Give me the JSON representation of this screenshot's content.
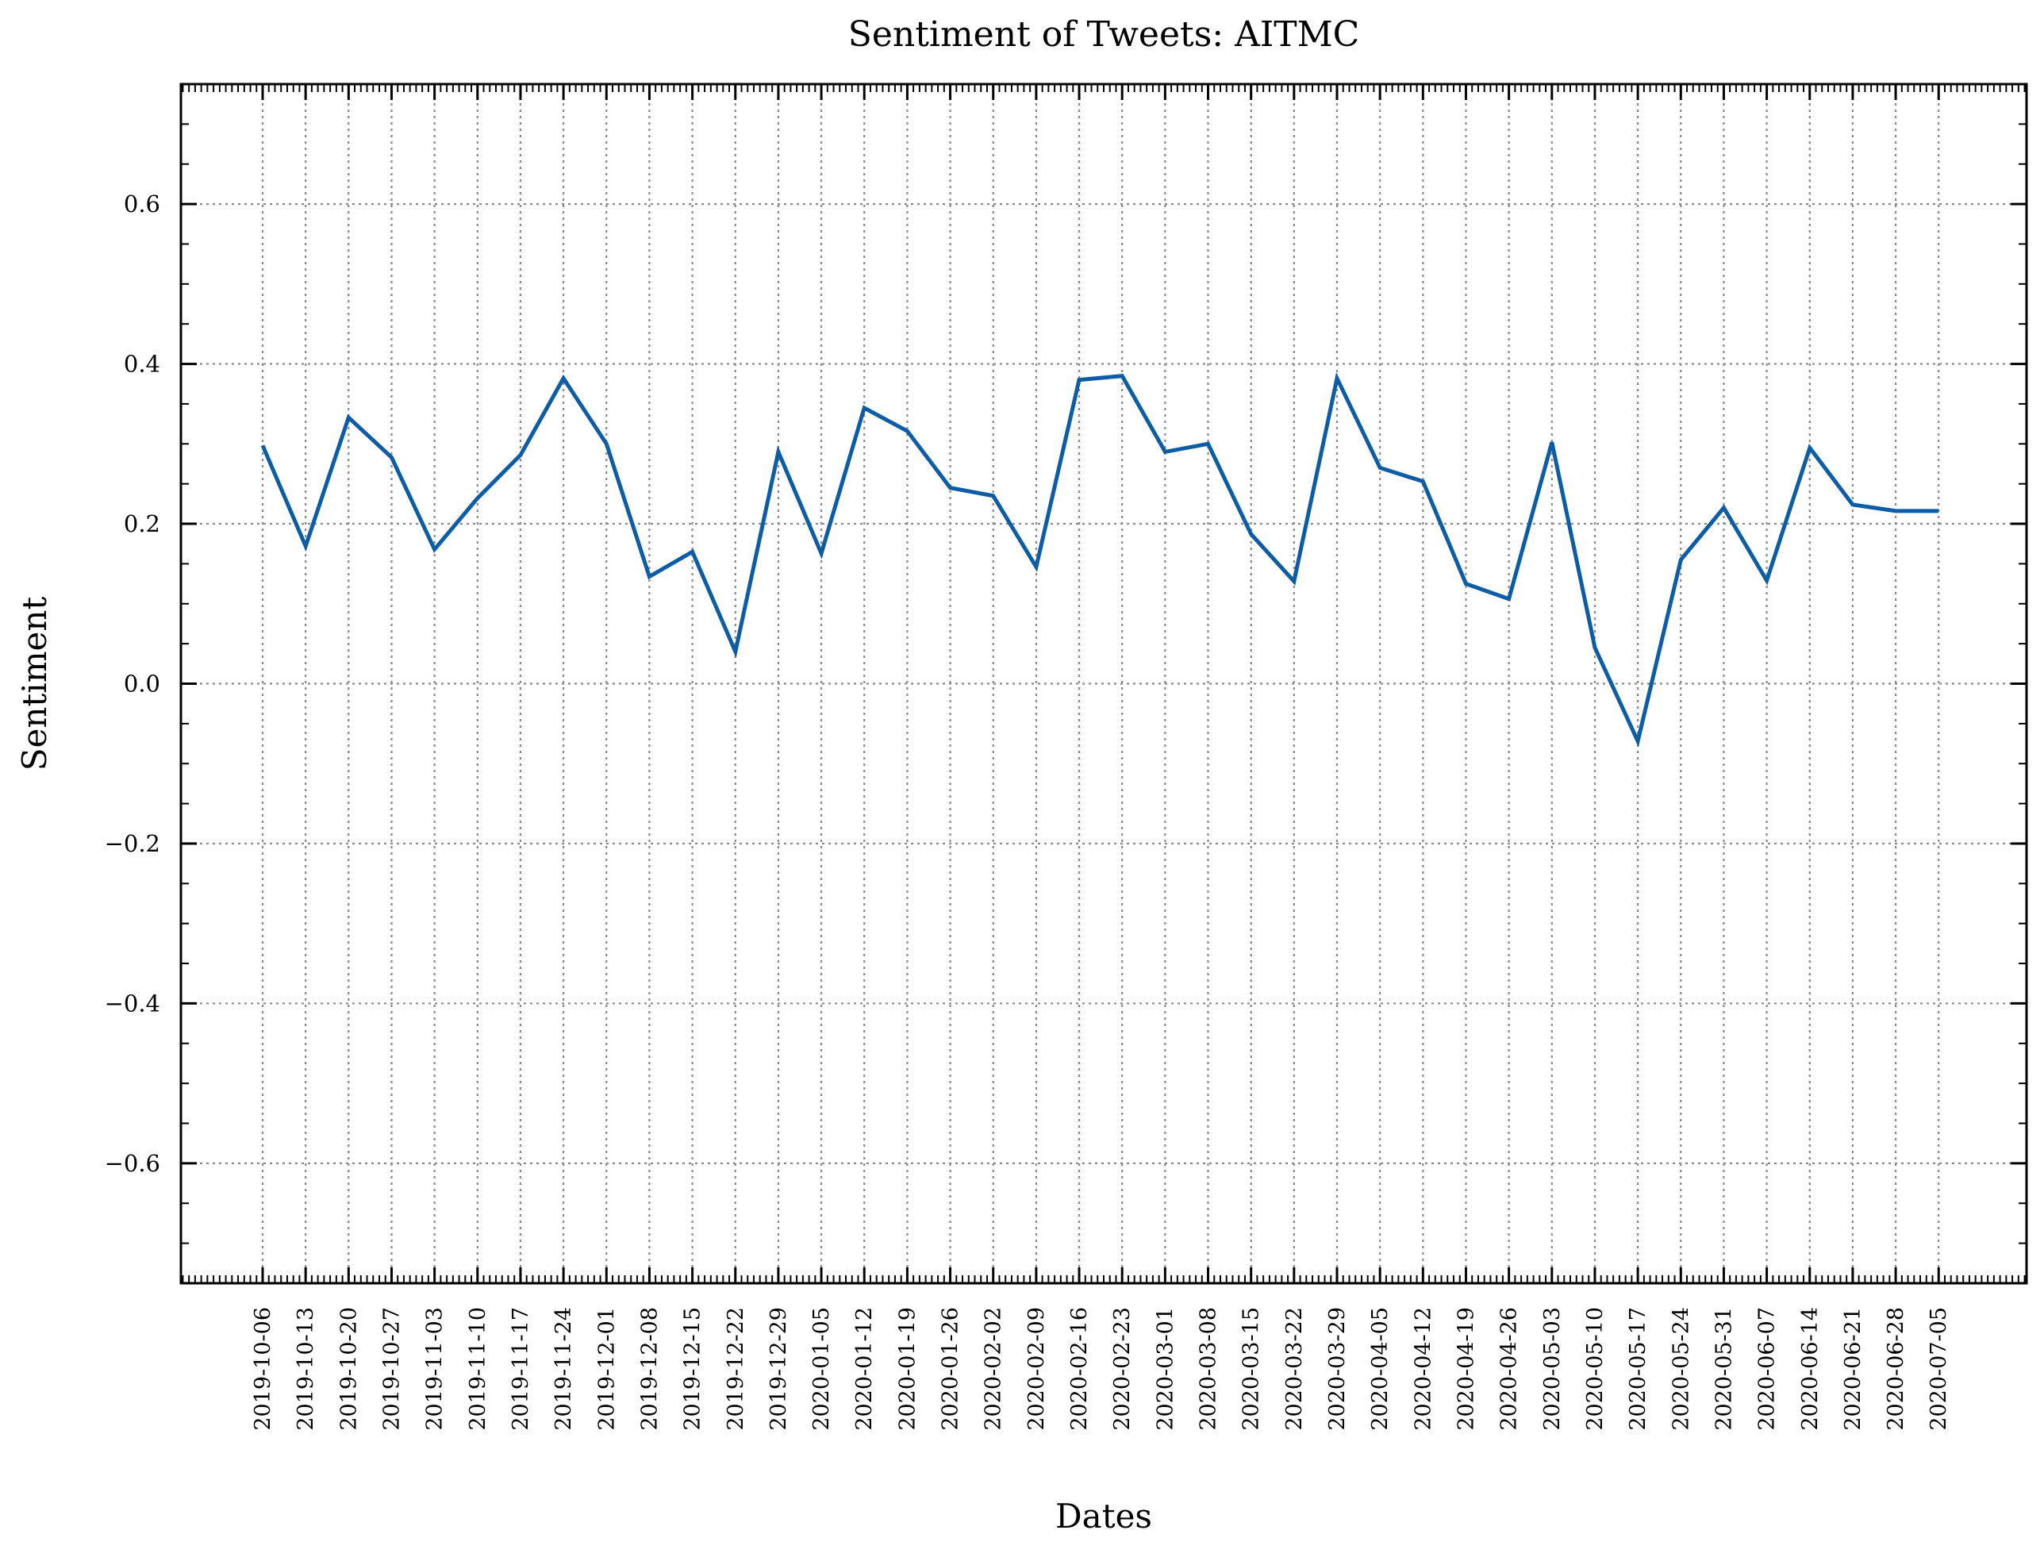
{
  "chart_data": {
    "type": "line",
    "title": "Sentiment of Tweets: AITMC",
    "xlabel": "Dates",
    "ylabel": "Sentiment",
    "ylim": [
      -0.75,
      0.75
    ],
    "yticks": [
      -0.6,
      -0.4,
      -0.2,
      0.0,
      0.2,
      0.4,
      0.6
    ],
    "ytick_labels": [
      "−0.6",
      "−0.4",
      "−0.2",
      "0.0",
      "0.2",
      "0.4",
      "0.6"
    ],
    "grid": true,
    "line_color": "#0c5da5",
    "x": [
      "2019-10-06",
      "2019-10-13",
      "2019-10-20",
      "2019-10-27",
      "2019-11-03",
      "2019-11-10",
      "2019-11-17",
      "2019-11-24",
      "2019-12-01",
      "2019-12-08",
      "2019-12-15",
      "2019-12-22",
      "2019-12-29",
      "2020-01-05",
      "2020-01-12",
      "2020-01-19",
      "2020-01-26",
      "2020-02-02",
      "2020-02-09",
      "2020-02-16",
      "2020-02-23",
      "2020-03-01",
      "2020-03-08",
      "2020-03-15",
      "2020-03-22",
      "2020-03-29",
      "2020-04-05",
      "2020-04-12",
      "2020-04-19",
      "2020-04-26",
      "2020-05-03",
      "2020-05-10",
      "2020-05-17",
      "2020-05-24",
      "2020-05-31",
      "2020-06-07",
      "2020-06-14",
      "2020-06-21",
      "2020-06-28",
      "2020-07-05"
    ],
    "series": [
      {
        "values": [
          0.298,
          0.172,
          0.333,
          0.283,
          0.168,
          0.232,
          0.286,
          0.382,
          0.3,
          0.134,
          0.165,
          0.04,
          0.29,
          0.163,
          0.345,
          0.316,
          0.245,
          0.235,
          0.146,
          0.38,
          0.385,
          0.29,
          0.3,
          0.187,
          0.128,
          0.382,
          0.27,
          0.253,
          0.125,
          0.106,
          0.302,
          0.045,
          -0.072,
          0.155,
          0.22,
          0.129,
          0.295,
          0.224,
          0.216,
          0.216
        ]
      }
    ]
  }
}
